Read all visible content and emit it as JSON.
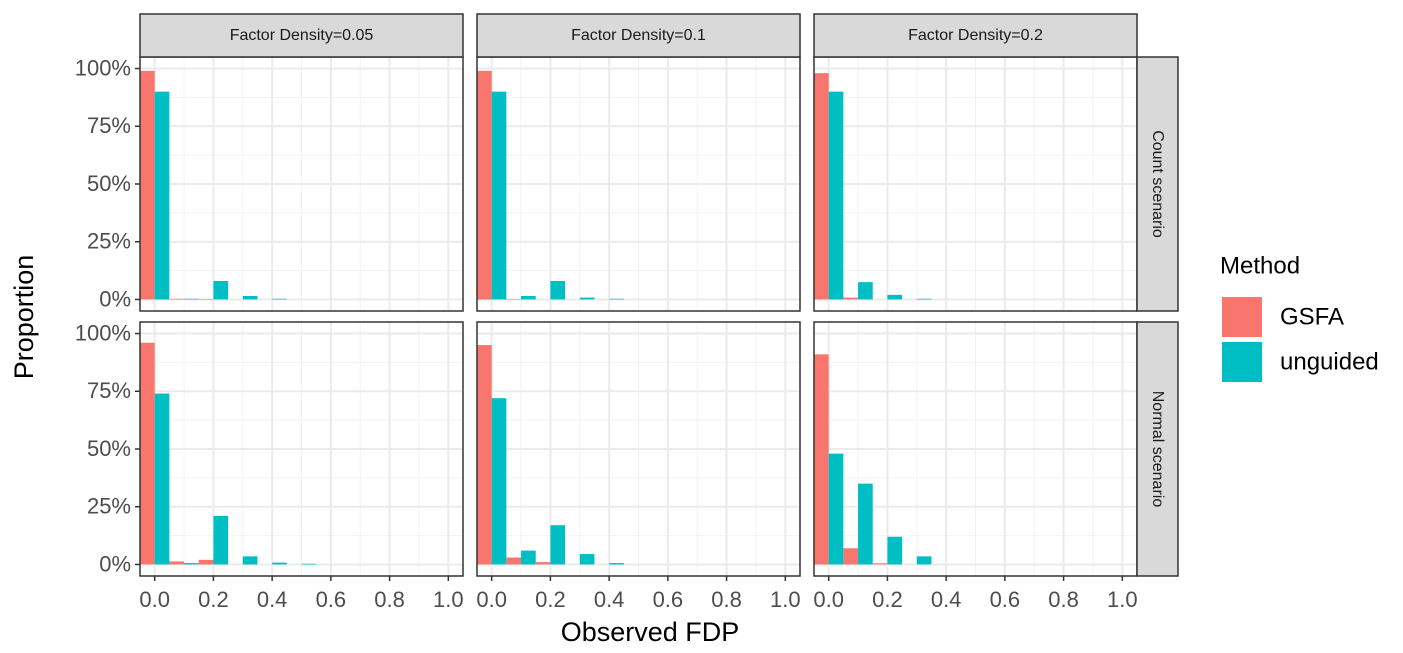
{
  "chart_data": {
    "type": "bar",
    "x_label": "Observed FDP",
    "y_label": "Proportion",
    "col_labels": [
      "Factor Density=0.05",
      "Factor Density=0.1",
      "Factor Density=0.2"
    ],
    "row_labels": [
      "Count scenario",
      "Normal scenario"
    ],
    "legend_title": "Method",
    "series": [
      {
        "name": "GSFA",
        "color": "#F8766D"
      },
      {
        "name": "unguided",
        "color": "#00BFC4"
      }
    ],
    "bins": [
      0,
      0.1,
      0.2,
      0.3,
      0.4,
      0.5,
      0.6,
      0.7,
      0.8,
      0.9,
      1.0
    ],
    "panels": [
      [
        [
          [
            0.99,
            0.003,
            0.002,
            0,
            0,
            0,
            0,
            0,
            0,
            0
          ],
          [
            0.9,
            0.003,
            0.08,
            0.015,
            0.003,
            0,
            0,
            0,
            0,
            0
          ]
        ],
        [
          [
            0.99,
            0.002,
            0,
            0,
            0,
            0,
            0,
            0,
            0,
            0
          ],
          [
            0.9,
            0.015,
            0.08,
            0.008,
            0.003,
            0,
            0,
            0,
            0,
            0
          ]
        ],
        [
          [
            0.98,
            0.008,
            0,
            0,
            0,
            0,
            0,
            0,
            0,
            0
          ],
          [
            0.9,
            0.075,
            0.02,
            0.003,
            0,
            0,
            0,
            0,
            0,
            0
          ]
        ]
      ],
      [
        [
          [
            0.96,
            0.013,
            0.02,
            0,
            0,
            0,
            0,
            0,
            0,
            0
          ],
          [
            0.74,
            0.006,
            0.21,
            0.035,
            0.008,
            0.003,
            0,
            0,
            0,
            0
          ]
        ],
        [
          [
            0.95,
            0.03,
            0.01,
            0,
            0,
            0,
            0,
            0,
            0,
            0
          ],
          [
            0.72,
            0.06,
            0.17,
            0.045,
            0.006,
            0,
            0,
            0,
            0,
            0
          ]
        ],
        [
          [
            0.91,
            0.07,
            0.005,
            0,
            0,
            0,
            0,
            0,
            0,
            0
          ],
          [
            0.48,
            0.35,
            0.12,
            0.035,
            0,
            0,
            0,
            0,
            0,
            0
          ]
        ]
      ]
    ],
    "xlim": [
      -0.05,
      1.05
    ],
    "xticks": [
      {
        "value": 0,
        "label": "0.0"
      },
      0.2,
      0.4,
      0.6,
      0.8,
      {
        "value": 1,
        "label": "1.0"
      }
    ],
    "ylim": [
      -0.05,
      1.05
    ],
    "yticks": [
      {
        "value": 0,
        "label": "0%"
      },
      {
        "value": 0.25,
        "label": "25%"
      },
      {
        "value": 0.5,
        "label": "50%"
      },
      {
        "value": 0.75,
        "label": "75%"
      },
      {
        "value": 1,
        "label": "100%"
      }
    ],
    "grid": true
  }
}
